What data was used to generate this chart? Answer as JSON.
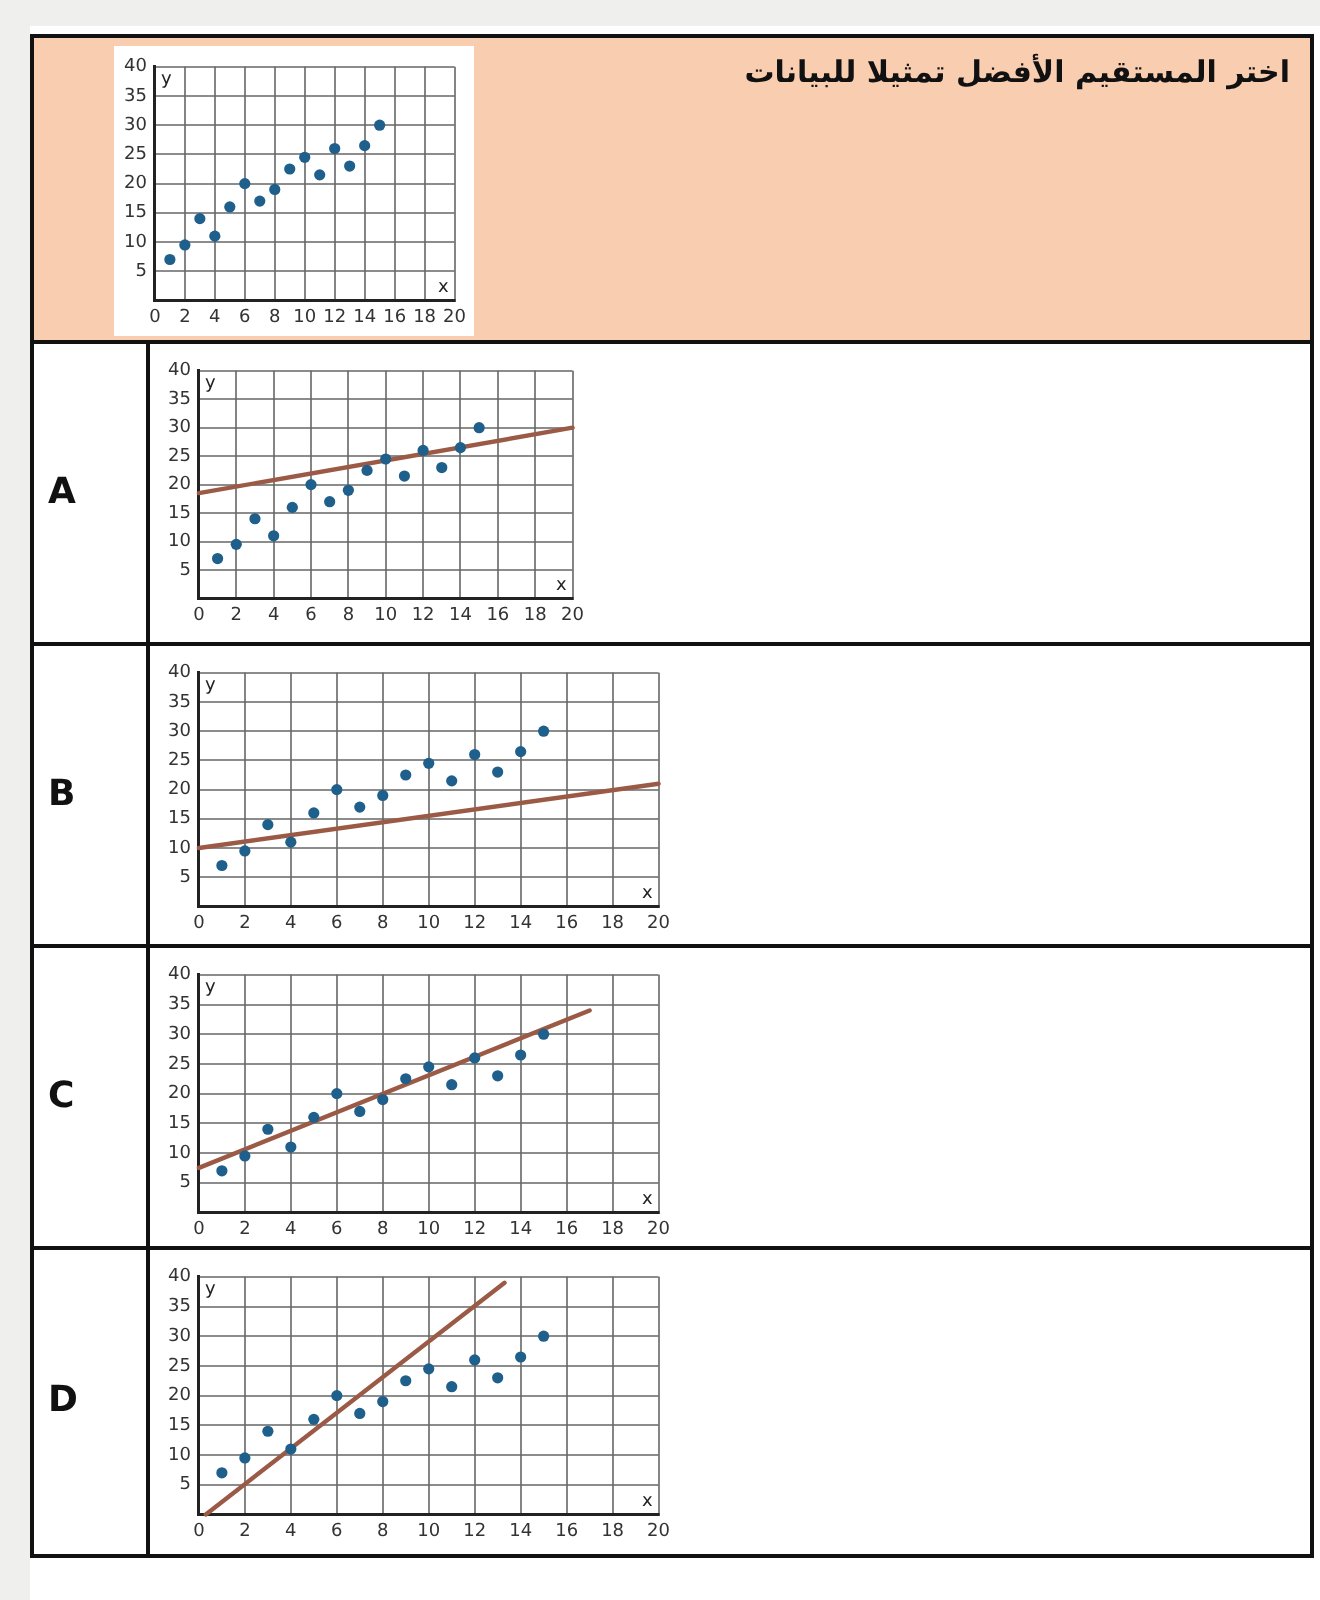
{
  "chart_data": [
    {
      "type": "scatter",
      "annotations": [
        "اختر المستقيم الأفضل تمثيلا للبيانات"
      ],
      "xlabel": "x",
      "ylabel": "y",
      "xlim": [
        0,
        20
      ],
      "ylim": [
        0,
        40
      ],
      "xticks": [
        0,
        2,
        4,
        6,
        8,
        10,
        12,
        14,
        16,
        18,
        20
      ],
      "yticks": [
        5,
        10,
        15,
        20,
        25,
        30,
        35,
        40
      ],
      "grid": true,
      "series": [
        {
          "type": "scatter",
          "marker": "circle",
          "color": "#1f5f8b",
          "x": [
            1,
            2,
            3,
            4,
            5,
            6,
            7,
            8,
            9,
            10,
            11,
            12,
            13,
            14,
            15
          ],
          "values": [
            7,
            9.5,
            14,
            11,
            16,
            20,
            17,
            19,
            22.5,
            24.5,
            21.5,
            26,
            23,
            26.5,
            30
          ]
        }
      ]
    },
    {
      "type": "scatter",
      "title": "A",
      "xlabel": "x",
      "ylabel": "y",
      "xlim": [
        0,
        20
      ],
      "ylim": [
        0,
        40
      ],
      "xticks": [
        0,
        2,
        4,
        6,
        8,
        10,
        12,
        14,
        16,
        18,
        20
      ],
      "yticks": [
        5,
        10,
        15,
        20,
        25,
        30,
        35,
        40
      ],
      "grid": true,
      "series": [
        {
          "type": "scatter",
          "marker": "circle",
          "color": "#1f5f8b",
          "x": [
            1,
            2,
            3,
            4,
            5,
            6,
            7,
            8,
            9,
            10,
            11,
            12,
            13,
            14,
            15
          ],
          "values": [
            7,
            9.5,
            14,
            11,
            16,
            20,
            17,
            19,
            22.5,
            24.5,
            21.5,
            26,
            23,
            26.5,
            30
          ]
        },
        {
          "type": "line",
          "marker": "none",
          "color": "#9b5a45",
          "x": [
            0,
            20
          ],
          "values": [
            18.5,
            30
          ]
        }
      ]
    },
    {
      "type": "scatter",
      "title": "B",
      "xlabel": "x",
      "ylabel": "y",
      "xlim": [
        0,
        20
      ],
      "ylim": [
        0,
        40
      ],
      "xticks": [
        0,
        2,
        4,
        6,
        8,
        10,
        12,
        14,
        16,
        18,
        20
      ],
      "yticks": [
        5,
        10,
        15,
        20,
        25,
        30,
        35,
        40
      ],
      "grid": true,
      "series": [
        {
          "type": "scatter",
          "marker": "circle",
          "color": "#1f5f8b",
          "x": [
            1,
            2,
            3,
            4,
            5,
            6,
            7,
            8,
            9,
            10,
            11,
            12,
            13,
            14,
            15
          ],
          "values": [
            7,
            9.5,
            14,
            11,
            16,
            20,
            17,
            19,
            22.5,
            24.5,
            21.5,
            26,
            23,
            26.5,
            30
          ]
        },
        {
          "type": "line",
          "marker": "none",
          "color": "#9b5a45",
          "x": [
            0,
            20
          ],
          "values": [
            10,
            21
          ]
        }
      ]
    },
    {
      "type": "scatter",
      "title": "C",
      "xlabel": "x",
      "ylabel": "y",
      "xlim": [
        0,
        20
      ],
      "ylim": [
        0,
        40
      ],
      "xticks": [
        0,
        2,
        4,
        6,
        8,
        10,
        12,
        14,
        16,
        18,
        20
      ],
      "yticks": [
        5,
        10,
        15,
        20,
        25,
        30,
        35,
        40
      ],
      "grid": true,
      "series": [
        {
          "type": "scatter",
          "marker": "circle",
          "color": "#1f5f8b",
          "x": [
            1,
            2,
            3,
            4,
            5,
            6,
            7,
            8,
            9,
            10,
            11,
            12,
            13,
            14,
            15
          ],
          "values": [
            7,
            9.5,
            14,
            11,
            16,
            20,
            17,
            19,
            22.5,
            24.5,
            21.5,
            26,
            23,
            26.5,
            30
          ]
        },
        {
          "type": "line",
          "marker": "none",
          "color": "#9b5a45",
          "x": [
            0,
            17
          ],
          "values": [
            7.5,
            34
          ]
        }
      ]
    },
    {
      "type": "scatter",
      "title": "D",
      "xlabel": "x",
      "ylabel": "y",
      "xlim": [
        0,
        20
      ],
      "ylim": [
        0,
        40
      ],
      "xticks": [
        0,
        2,
        4,
        6,
        8,
        10,
        12,
        14,
        16,
        18,
        20
      ],
      "yticks": [
        5,
        10,
        15,
        20,
        25,
        30,
        35,
        40
      ],
      "grid": true,
      "series": [
        {
          "type": "scatter",
          "marker": "circle",
          "color": "#1f5f8b",
          "x": [
            1,
            2,
            3,
            4,
            5,
            6,
            7,
            8,
            9,
            10,
            11,
            12,
            13,
            14,
            15
          ],
          "values": [
            7,
            9.5,
            14,
            11,
            16,
            20,
            17,
            19,
            22.5,
            24.5,
            21.5,
            26,
            23,
            26.5,
            30
          ]
        },
        {
          "type": "line",
          "marker": "none",
          "color": "#9b5a45",
          "x": [
            0.3,
            13.3
          ],
          "values": [
            0,
            39
          ]
        }
      ]
    }
  ]
}
